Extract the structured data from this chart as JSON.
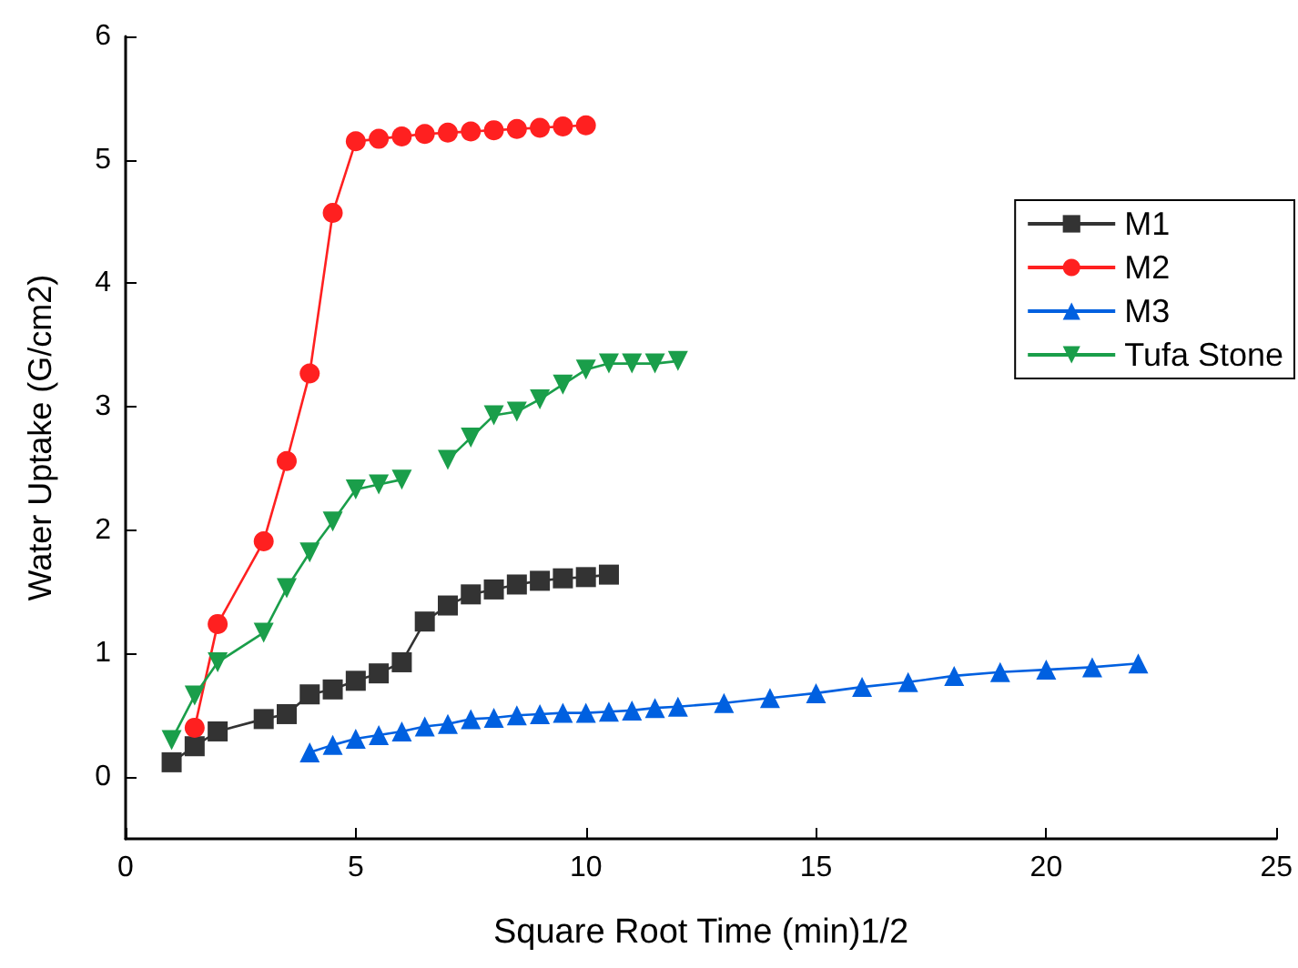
{
  "chart_data": {
    "type": "line",
    "xlabel": "Square Root Time (min)1/2",
    "ylabel": "Water Uptake (G/cm2)",
    "xlim": [
      0,
      25
    ],
    "xticks": [
      0,
      5,
      10,
      15,
      20,
      25
    ],
    "ylim": [
      -0.5,
      6
    ],
    "yticks": [
      0,
      1,
      2,
      3,
      4,
      5,
      6
    ],
    "grid": false,
    "legend": "top right",
    "line_style": "solid",
    "series": [
      {
        "name": "M1",
        "color": "#333333",
        "marker": "square",
        "x": [
          1,
          1.5,
          2,
          3,
          3.5,
          4,
          4.5,
          5,
          5.5,
          6,
          6.5,
          7,
          7.5,
          8,
          8.5,
          9,
          9.5,
          10,
          10.5
        ],
        "values": [
          0.12,
          0.25,
          0.37,
          0.47,
          0.51,
          0.67,
          0.71,
          0.78,
          0.84,
          0.93,
          1.26,
          1.39,
          1.48,
          1.52,
          1.56,
          1.59,
          1.61,
          1.62,
          1.64
        ]
      },
      {
        "name": "M2",
        "color": "#ff2020",
        "marker": "circle",
        "x": [
          1.5,
          2,
          3,
          3.5,
          4,
          4.5,
          5,
          5.5,
          6,
          6.5,
          7,
          7.5,
          8,
          8.5,
          9,
          9.5,
          10
        ],
        "values": [
          0.4,
          1.24,
          1.91,
          2.56,
          3.27,
          4.57,
          5.15,
          5.17,
          5.19,
          5.21,
          5.22,
          5.23,
          5.24,
          5.25,
          5.26,
          5.27,
          5.28
        ]
      },
      {
        "name": "M3",
        "color": "#0060e0",
        "marker": "triangle",
        "x": [
          4,
          4.5,
          5,
          5.5,
          6,
          6.5,
          7,
          7.5,
          8,
          8.5,
          9,
          9.5,
          10,
          10.5,
          11,
          11.5,
          12,
          13,
          14,
          15,
          16,
          17,
          18,
          19,
          20,
          21,
          22
        ],
        "values": [
          0.2,
          0.26,
          0.31,
          0.34,
          0.37,
          0.41,
          0.43,
          0.47,
          0.48,
          0.5,
          0.51,
          0.52,
          0.52,
          0.53,
          0.54,
          0.56,
          0.57,
          0.6,
          0.64,
          0.68,
          0.73,
          0.77,
          0.82,
          0.85,
          0.87,
          0.89,
          0.92
        ]
      },
      {
        "name": "Tufa Stone",
        "color": "#1a9e4a",
        "marker": "triangle-down",
        "x": [
          1,
          1.5,
          2,
          3,
          3.5,
          4,
          4.5,
          5,
          5.5,
          6,
          6.5,
          7,
          7.5,
          8,
          8.5,
          9,
          9.5,
          10,
          10.5,
          11,
          11.5,
          12
        ],
        "values": [
          0.3,
          0.66,
          0.93,
          1.17,
          1.53,
          1.82,
          2.07,
          2.33,
          2.37,
          2.41,
          null,
          2.57,
          2.75,
          2.93,
          2.96,
          3.06,
          3.18,
          3.3,
          3.35,
          3.35,
          3.35,
          3.37
        ]
      }
    ]
  }
}
